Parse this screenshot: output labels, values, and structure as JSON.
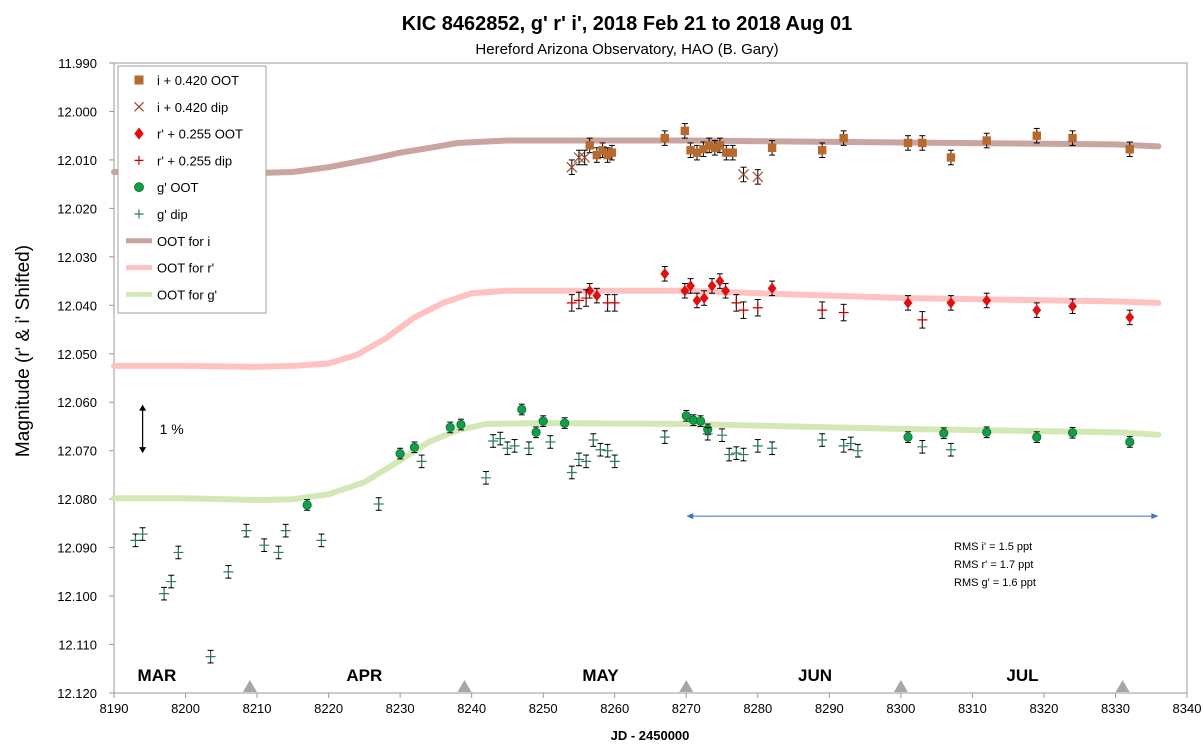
{
  "chart_data": {
    "type": "scatter",
    "title": "KIC 8462852, g' r' i', 2018 Feb 21 to 2018 Aug 01",
    "subtitle": "Hereford Arizona Observatory, HAO (B. Gary)",
    "xlabel": "JD - 2450000",
    "ylabel": "Magnitude  (r' & i' Shifted)",
    "xlim": [
      8190,
      8340
    ],
    "ylim": [
      12.12,
      11.99
    ],
    "y_inverted": true,
    "x_ticks": [
      "8190",
      "8200",
      "8210",
      "8220",
      "8230",
      "8240",
      "8250",
      "8260",
      "8270",
      "8280",
      "8290",
      "8300",
      "8310",
      "8320",
      "8330",
      "8340"
    ],
    "y_ticks": [
      "11.990",
      "12.000",
      "12.010",
      "12.020",
      "12.030",
      "12.040",
      "12.050",
      "12.060",
      "12.070",
      "12.080",
      "12.090",
      "12.100",
      "12.110",
      "12.120"
    ],
    "grid": false,
    "legend_position": "top-left",
    "months": [
      {
        "label": "MAR",
        "x": 8196
      },
      {
        "label": "APR",
        "x": 8225
      },
      {
        "label": "MAY",
        "x": 8258
      },
      {
        "label": "JUN",
        "x": 8288
      },
      {
        "label": "JUL",
        "x": 8317
      }
    ],
    "month_markers": [
      8209,
      8239,
      8270,
      8300,
      8331
    ],
    "scale_bar": {
      "label": "1 %",
      "y1": 12.0605,
      "y2": 12.0705,
      "x": 8194
    },
    "range_arrow": {
      "x1": 8270,
      "x2": 8336,
      "y": 12.0835
    },
    "rms_text": [
      "RMS i'  = 1.5 ppt",
      "RMS r'  = 1.7 ppt",
      "RMS g' = 1.6 ppt"
    ],
    "series": [
      {
        "name": "i + 0.420 OOT",
        "kind": "square",
        "color": "#B8692E",
        "err": 0.0015,
        "points": [
          [
            8256.5,
            12.007
          ],
          [
            8257.5,
            12.009
          ],
          [
            8258.3,
            12.008
          ],
          [
            8259,
            12.009
          ],
          [
            8259.6,
            12.0085
          ],
          [
            8267,
            12.0055
          ],
          [
            8269.8,
            12.004
          ],
          [
            8270.6,
            12.008
          ],
          [
            8271.5,
            12.0085
          ],
          [
            8272.4,
            12.0078
          ],
          [
            8273.2,
            12.007
          ],
          [
            8274,
            12.0075
          ],
          [
            8274.7,
            12.007
          ],
          [
            8275.6,
            12.0085
          ],
          [
            8276.5,
            12.0085
          ],
          [
            8282,
            12.0075
          ],
          [
            8289,
            12.008
          ],
          [
            8292,
            12.0055
          ],
          [
            8301,
            12.0065
          ],
          [
            8303,
            12.0065
          ],
          [
            8307,
            12.0095
          ],
          [
            8312,
            12.006
          ],
          [
            8319,
            12.005
          ],
          [
            8324,
            12.0055
          ],
          [
            8332,
            12.0078
          ]
        ]
      },
      {
        "name": "i + 0.420 dip",
        "kind": "x",
        "color": "#A0462D",
        "err": 0.0015,
        "points": [
          [
            8254,
            12.0115
          ],
          [
            8255,
            12.0095
          ],
          [
            8255.8,
            12.0095
          ],
          [
            8278,
            12.013
          ],
          [
            8280,
            12.0135
          ]
        ]
      },
      {
        "name": "r' + 0.255 OOT",
        "kind": "diamond",
        "color": "#E01010",
        "err": 0.0015,
        "points": [
          [
            8256.5,
            12.037
          ],
          [
            8257.5,
            12.038
          ],
          [
            8267,
            12.0335
          ],
          [
            8269.8,
            12.037
          ],
          [
            8270.6,
            12.036
          ],
          [
            8271.5,
            12.039
          ],
          [
            8272.5,
            12.0385
          ],
          [
            8273.6,
            12.036
          ],
          [
            8274.7,
            12.035
          ],
          [
            8275.5,
            12.037
          ],
          [
            8282,
            12.0365
          ],
          [
            8301,
            12.0395
          ],
          [
            8307,
            12.0395
          ],
          [
            8312,
            12.039
          ],
          [
            8319,
            12.041
          ],
          [
            8324,
            12.0402
          ],
          [
            8332,
            12.0425
          ]
        ]
      },
      {
        "name": "r' + 0.255 dip",
        "kind": "plus",
        "color": "#C00000",
        "err": 0.0017,
        "points": [
          [
            8254,
            12.0395
          ],
          [
            8255,
            12.039
          ],
          [
            8256,
            12.0385
          ],
          [
            8259,
            12.0395
          ],
          [
            8260,
            12.0395
          ],
          [
            8277,
            12.0395
          ],
          [
            8278,
            12.041
          ],
          [
            8280,
            12.0405
          ],
          [
            8289,
            12.041
          ],
          [
            8292,
            12.0415
          ],
          [
            8303,
            12.043
          ]
        ]
      },
      {
        "name": "g' OOT",
        "kind": "circle",
        "color": "#0FA048",
        "err": 0.0011,
        "points": [
          [
            8217,
            12.0812
          ],
          [
            8230,
            12.0706
          ],
          [
            8232,
            12.0693
          ],
          [
            8237,
            12.0652
          ],
          [
            8238.5,
            12.0646
          ],
          [
            8247,
            12.0615
          ],
          [
            8249,
            12.0662
          ],
          [
            8250,
            12.0639
          ],
          [
            8253,
            12.0643
          ],
          [
            8270,
            12.0628
          ],
          [
            8271,
            12.0637
          ],
          [
            8272,
            12.0639
          ],
          [
            8273,
            12.0656
          ],
          [
            8301,
            12.0672
          ],
          [
            8306,
            12.0664
          ],
          [
            8312,
            12.0662
          ],
          [
            8319,
            12.0672
          ],
          [
            8324,
            12.0663
          ],
          [
            8332,
            12.0682
          ]
        ]
      },
      {
        "name": "g' dip",
        "kind": "plus",
        "color": "#2E7D5B",
        "err": 0.0013,
        "points": [
          [
            8193,
            12.0885
          ],
          [
            8194,
            12.0872
          ],
          [
            8197,
            12.0995
          ],
          [
            8198,
            12.097
          ],
          [
            8199,
            12.091
          ],
          [
            8203.5,
            12.1125
          ],
          [
            8206,
            12.095
          ],
          [
            8208.5,
            12.0865
          ],
          [
            8211,
            12.0895
          ],
          [
            8213,
            12.091
          ],
          [
            8214,
            12.0865
          ],
          [
            8219,
            12.0885
          ],
          [
            8227,
            12.081
          ],
          [
            8233,
            12.0722
          ],
          [
            8242,
            12.0756
          ],
          [
            8243,
            12.068
          ],
          [
            8244,
            12.0675
          ],
          [
            8245,
            12.0695
          ],
          [
            8246,
            12.069
          ],
          [
            8248,
            12.0695
          ],
          [
            8251,
            12.0682
          ],
          [
            8254,
            12.0745
          ],
          [
            8255,
            12.0718
          ],
          [
            8256,
            12.0722
          ],
          [
            8257,
            12.0678
          ],
          [
            8258,
            12.0698
          ],
          [
            8259,
            12.07
          ],
          [
            8260,
            12.0722
          ],
          [
            8267,
            12.0672
          ],
          [
            8273,
            12.0665
          ],
          [
            8275,
            12.0668
          ],
          [
            8276,
            12.0708
          ],
          [
            8277,
            12.0705
          ],
          [
            8278,
            12.0708
          ],
          [
            8280,
            12.069
          ],
          [
            8282,
            12.0695
          ],
          [
            8289,
            12.0678
          ],
          [
            8292,
            12.069
          ],
          [
            8293,
            12.0685
          ],
          [
            8294,
            12.07
          ],
          [
            8303,
            12.0692
          ],
          [
            8307,
            12.0698
          ]
        ]
      },
      {
        "name": "OOT for i",
        "kind": "line",
        "color": "#C9A4A0",
        "points": [
          [
            8190,
            12.0125
          ],
          [
            8200,
            12.0125
          ],
          [
            8210,
            12.0127
          ],
          [
            8215,
            12.0125
          ],
          [
            8220,
            12.0115
          ],
          [
            8226,
            12.0098
          ],
          [
            8230,
            12.0085
          ],
          [
            8235,
            12.0073
          ],
          [
            8238,
            12.0065
          ],
          [
            8245,
            12.006
          ],
          [
            8270,
            12.006
          ],
          [
            8300,
            12.0064
          ],
          [
            8330,
            12.0068
          ],
          [
            8336,
            12.0072
          ]
        ]
      },
      {
        "name": "OOT for r'",
        "kind": "line",
        "color": "#FFC2C2",
        "points": [
          [
            8190,
            12.0525
          ],
          [
            8200,
            12.0525
          ],
          [
            8210,
            12.0527
          ],
          [
            8215,
            12.0525
          ],
          [
            8220,
            12.052
          ],
          [
            8224,
            12.0502
          ],
          [
            8228,
            12.0468
          ],
          [
            8232,
            12.0425
          ],
          [
            8236,
            12.0395
          ],
          [
            8240,
            12.0375
          ],
          [
            8245,
            12.037
          ],
          [
            8270,
            12.037
          ],
          [
            8300,
            12.0385
          ],
          [
            8330,
            12.0392
          ],
          [
            8336,
            12.0395
          ]
        ]
      },
      {
        "name": "OOT for g'",
        "kind": "line",
        "color": "#D3E9B5",
        "points": [
          [
            8190,
            12.0798
          ],
          [
            8200,
            12.0798
          ],
          [
            8210,
            12.0802
          ],
          [
            8215,
            12.08
          ],
          [
            8220,
            12.079
          ],
          [
            8225,
            12.0765
          ],
          [
            8230,
            12.072
          ],
          [
            8234,
            12.0682
          ],
          [
            8238,
            12.0658
          ],
          [
            8242,
            12.0645
          ],
          [
            8250,
            12.0643
          ],
          [
            8270,
            12.0645
          ],
          [
            8300,
            12.0655
          ],
          [
            8330,
            12.0662
          ],
          [
            8336,
            12.0667
          ]
        ]
      }
    ]
  }
}
